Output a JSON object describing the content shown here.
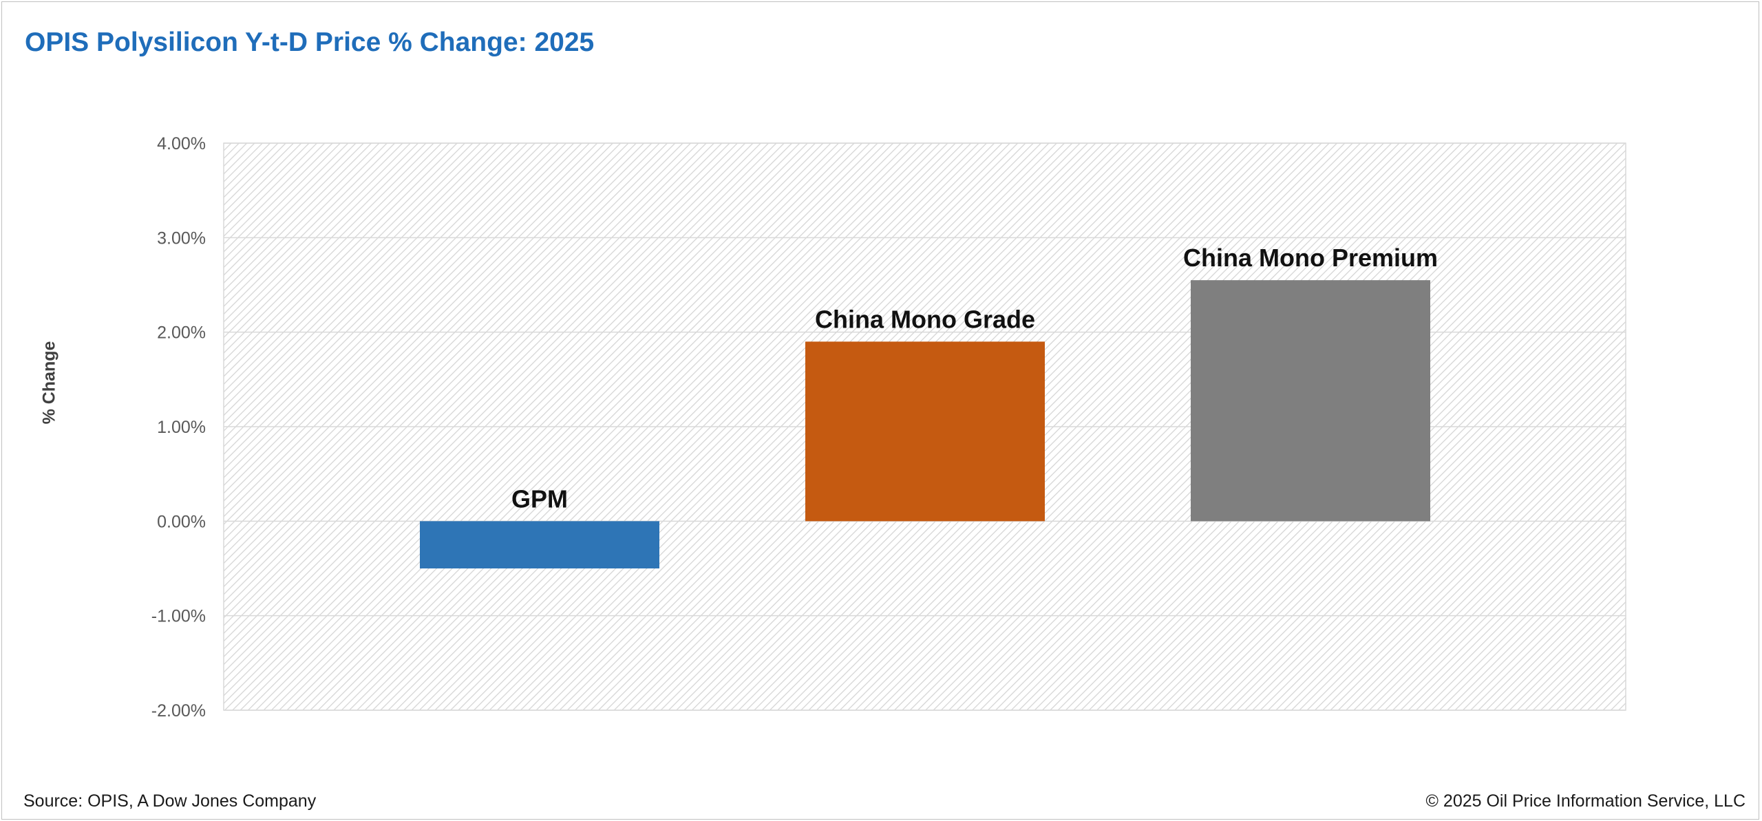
{
  "title": "OPIS Polysilicon Y-t-D Price % Change: 2025",
  "source": "Source: OPIS, A Dow Jones Company",
  "copyright": "© 2025 Oil Price Information Service, LLC",
  "chart_data": {
    "type": "bar",
    "title": "OPIS Polysilicon Y-t-D Price % Change: 2025",
    "xlabel": "",
    "ylabel": "% Change",
    "categories": [
      "GPM",
      "China Mono Grade",
      "China Mono Premium"
    ],
    "values": [
      -0.5,
      1.9,
      2.55
    ],
    "data_labels": [
      "GPM",
      "China Mono Grade",
      "China Mono Premium"
    ],
    "colors": [
      "#2e75b6",
      "#c55a11",
      "#7f7f7f"
    ],
    "ylim": [
      -2,
      4
    ],
    "yticks": [
      4,
      3,
      2,
      1,
      0,
      -1,
      -2
    ],
    "ytick_labels": [
      "4.00%",
      "3.00%",
      "2.00%",
      "1.00%",
      "0.00%",
      "-1.00%",
      "-2.00%"
    ],
    "grid": true,
    "legend": "none",
    "plot_background": "diagonal hatch"
  }
}
